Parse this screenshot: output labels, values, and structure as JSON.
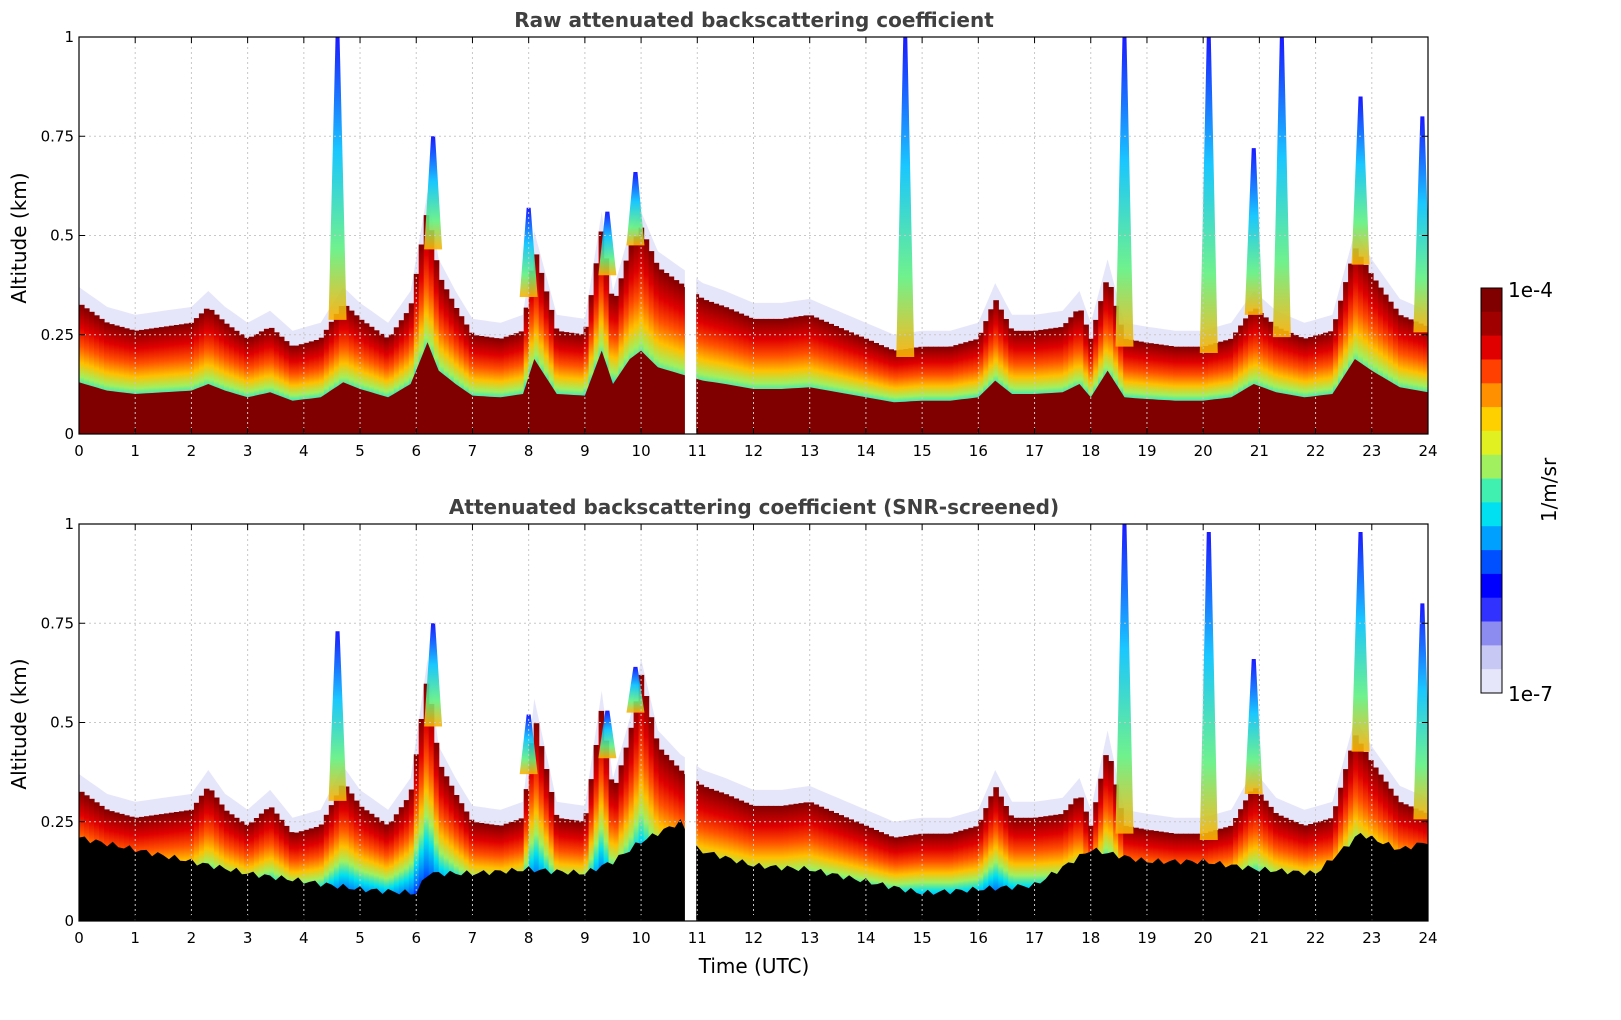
{
  "chart_data": [
    {
      "type": "heatmap",
      "id": "raw",
      "title": "Raw attenuated backscattering coefficient",
      "xlabel": "",
      "ylabel": "Altitude (km)",
      "xlim": [
        0,
        24
      ],
      "ylim": [
        0,
        1
      ],
      "xticks": [
        0,
        1,
        2,
        3,
        4,
        5,
        6,
        7,
        8,
        9,
        10,
        11,
        12,
        13,
        14,
        15,
        16,
        17,
        18,
        19,
        20,
        21,
        22,
        23,
        24
      ],
      "xtick_labels": [
        "0",
        "1",
        "2",
        "3",
        "4",
        "5",
        "6",
        "7",
        "8",
        "9",
        "10",
        "11",
        "12",
        "13",
        "14",
        "15",
        "16",
        "17",
        "18",
        "19",
        "20",
        "21",
        "22",
        "23",
        "24"
      ],
      "yticks": [
        0,
        0.25,
        0.5,
        0.75,
        1
      ],
      "ytick_labels": [
        "0",
        "0.25",
        "0.5",
        "0.75",
        "1"
      ],
      "grid": true,
      "screened": false,
      "data_gap_utc": [
        10.78,
        10.98
      ],
      "aerosol_layer_top_km": {
        "time_utc": [
          0,
          0.5,
          1,
          1.5,
          2,
          2.3,
          2.6,
          3,
          3.4,
          3.8,
          4.3,
          4.7,
          5,
          5.5,
          5.9,
          6.2,
          6.4,
          6.7,
          7,
          7.5,
          7.9,
          8.1,
          8.5,
          9,
          9.3,
          9.5,
          9.8,
          10,
          10.3,
          10.7,
          11.1,
          11.5,
          12,
          12.5,
          13,
          13.5,
          14,
          14.5,
          15,
          15.5,
          16,
          16.3,
          16.6,
          17,
          17.5,
          17.8,
          18,
          18.3,
          18.6,
          19,
          19.5,
          20,
          20.5,
          20.9,
          21.3,
          21.8,
          22.3,
          22.7,
          23,
          23.5,
          24
        ],
        "altitude_km": [
          0.31,
          0.26,
          0.24,
          0.25,
          0.26,
          0.3,
          0.26,
          0.22,
          0.25,
          0.2,
          0.22,
          0.31,
          0.27,
          0.22,
          0.3,
          0.55,
          0.38,
          0.3,
          0.23,
          0.22,
          0.24,
          0.45,
          0.24,
          0.23,
          0.5,
          0.3,
          0.45,
          0.5,
          0.4,
          0.36,
          0.32,
          0.3,
          0.27,
          0.27,
          0.28,
          0.25,
          0.22,
          0.19,
          0.2,
          0.2,
          0.22,
          0.32,
          0.24,
          0.24,
          0.25,
          0.3,
          0.22,
          0.38,
          0.22,
          0.21,
          0.2,
          0.2,
          0.22,
          0.3,
          0.25,
          0.22,
          0.24,
          0.45,
          0.38,
          0.28,
          0.25
        ]
      },
      "cloud_plumes": [
        {
          "time_utc": 4.6,
          "top_km": 1.0
        },
        {
          "time_utc": 6.3,
          "top_km": 0.75
        },
        {
          "time_utc": 8.0,
          "top_km": 0.57
        },
        {
          "time_utc": 9.4,
          "top_km": 0.56
        },
        {
          "time_utc": 9.9,
          "top_km": 0.66
        },
        {
          "time_utc": 14.7,
          "top_km": 1.0
        },
        {
          "time_utc": 18.6,
          "top_km": 1.0
        },
        {
          "time_utc": 20.1,
          "top_km": 1.0
        },
        {
          "time_utc": 20.9,
          "top_km": 0.72
        },
        {
          "time_utc": 21.4,
          "top_km": 1.0
        },
        {
          "time_utc": 22.8,
          "top_km": 0.85
        },
        {
          "time_utc": 23.9,
          "top_km": 0.8
        }
      ]
    },
    {
      "type": "heatmap",
      "id": "screened",
      "title": "Attenuated backscattering coefficient (SNR-screened)",
      "xlabel": "Time (UTC)",
      "ylabel": "Altitude (km)",
      "xlim": [
        0,
        24
      ],
      "ylim": [
        0,
        1
      ],
      "xticks": [
        0,
        1,
        2,
        3,
        4,
        5,
        6,
        7,
        8,
        9,
        10,
        11,
        12,
        13,
        14,
        15,
        16,
        17,
        18,
        19,
        20,
        21,
        22,
        23,
        24
      ],
      "xtick_labels": [
        "0",
        "1",
        "2",
        "3",
        "4",
        "5",
        "6",
        "7",
        "8",
        "9",
        "10",
        "11",
        "12",
        "13",
        "14",
        "15",
        "16",
        "17",
        "18",
        "19",
        "20",
        "21",
        "22",
        "23",
        "24"
      ],
      "yticks": [
        0,
        0.25,
        0.5,
        0.75,
        1
      ],
      "ytick_labels": [
        "0",
        "0.25",
        "0.5",
        "0.75",
        "1"
      ],
      "grid": true,
      "screened": true,
      "data_gap_utc": [
        10.78,
        10.98
      ],
      "aerosol_layer_top_km": {
        "time_utc": [
          0,
          0.5,
          1,
          1.5,
          2,
          2.3,
          2.6,
          3,
          3.4,
          3.8,
          4.3,
          4.7,
          5,
          5.5,
          5.9,
          6.2,
          6.4,
          6.7,
          7,
          7.5,
          7.9,
          8.1,
          8.5,
          9,
          9.3,
          9.5,
          9.8,
          10,
          10.3,
          10.7,
          11.1,
          11.5,
          12,
          12.5,
          13,
          13.5,
          14,
          14.5,
          15,
          15.5,
          16,
          16.3,
          16.6,
          17,
          17.5,
          17.8,
          18,
          18.3,
          18.6,
          19,
          19.5,
          20,
          20.5,
          20.9,
          21.3,
          21.8,
          22.3,
          22.7,
          23,
          23.5,
          24
        ],
        "altitude_km": [
          0.31,
          0.26,
          0.24,
          0.25,
          0.26,
          0.32,
          0.26,
          0.22,
          0.27,
          0.2,
          0.22,
          0.33,
          0.27,
          0.22,
          0.3,
          0.6,
          0.38,
          0.3,
          0.23,
          0.22,
          0.24,
          0.5,
          0.24,
          0.23,
          0.52,
          0.3,
          0.45,
          0.6,
          0.42,
          0.36,
          0.32,
          0.3,
          0.27,
          0.27,
          0.28,
          0.25,
          0.22,
          0.19,
          0.2,
          0.2,
          0.22,
          0.32,
          0.24,
          0.24,
          0.25,
          0.3,
          0.22,
          0.42,
          0.22,
          0.21,
          0.2,
          0.2,
          0.22,
          0.32,
          0.25,
          0.22,
          0.24,
          0.45,
          0.38,
          0.28,
          0.25
        ]
      },
      "noise_floor_top_km": {
        "time_utc": [
          0,
          1,
          2,
          3,
          4,
          5,
          6,
          6.2,
          7,
          8,
          9,
          9.5,
          10,
          10.7,
          11,
          12,
          13,
          14,
          15,
          16,
          17,
          18,
          19,
          20,
          21,
          22,
          22.8,
          23.5,
          24
        ],
        "altitude_km": [
          0.21,
          0.18,
          0.15,
          0.12,
          0.1,
          0.08,
          0.07,
          0.12,
          0.12,
          0.13,
          0.12,
          0.15,
          0.2,
          0.25,
          0.18,
          0.14,
          0.13,
          0.1,
          0.07,
          0.08,
          0.09,
          0.18,
          0.15,
          0.15,
          0.13,
          0.12,
          0.22,
          0.18,
          0.2
        ]
      },
      "cloud_plumes": [
        {
          "time_utc": 4.6,
          "top_km": 0.73
        },
        {
          "time_utc": 6.3,
          "top_km": 0.75
        },
        {
          "time_utc": 8.0,
          "top_km": 0.52
        },
        {
          "time_utc": 9.4,
          "top_km": 0.53
        },
        {
          "time_utc": 9.9,
          "top_km": 0.64
        },
        {
          "time_utc": 18.6,
          "top_km": 1.0
        },
        {
          "time_utc": 20.1,
          "top_km": 0.98
        },
        {
          "time_utc": 20.9,
          "top_km": 0.66
        },
        {
          "time_utc": 22.8,
          "top_km": 0.98
        },
        {
          "time_utc": 23.9,
          "top_km": 0.8
        }
      ]
    }
  ],
  "colorbar": {
    "label": "1/m/sr",
    "max_label": "1e-4",
    "min_label": "1e-7",
    "colors": [
      "#e6e6fa",
      "#c8c8f5",
      "#8c8cf0",
      "#3232ff",
      "#0000ff",
      "#0050ff",
      "#00a0ff",
      "#00e0f0",
      "#40f0b0",
      "#a0f060",
      "#e0f020",
      "#ffd000",
      "#ff9000",
      "#ff4000",
      "#e00000",
      "#a00000",
      "#800000"
    ]
  },
  "colors": {
    "saturated": "#800000",
    "noise_screened": "#000000",
    "grid": "#c8c8c8"
  }
}
